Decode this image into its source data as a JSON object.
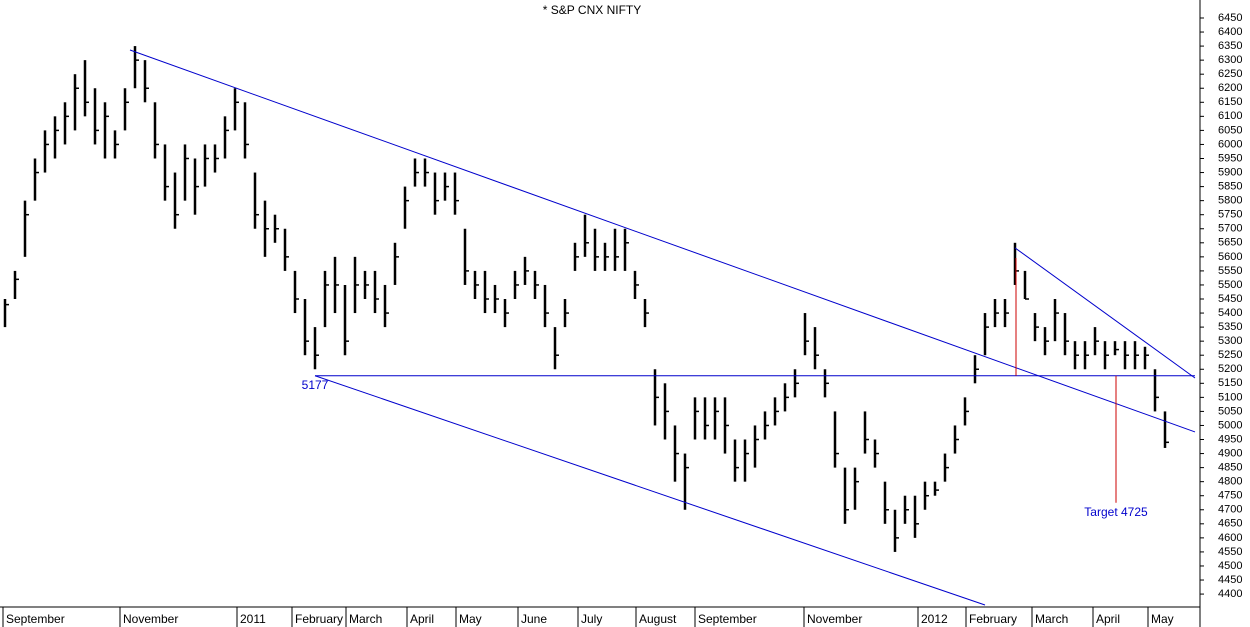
{
  "chart_data": {
    "type": "ohlc",
    "title": "* S&P CNX NIFTY",
    "bar_color": "#000000",
    "high": [
      5450,
      5550,
      5800,
      5950,
      6050,
      6100,
      6150,
      6250,
      6300,
      6200,
      6150,
      6050,
      6200,
      6350,
      6300,
      6150,
      6000,
      5900,
      6000,
      5950,
      6000,
      6000,
      6100,
      6200,
      6150,
      5900,
      5800,
      5750,
      5700,
      5550,
      5450,
      5350,
      5550,
      5600,
      5500,
      5600,
      5550,
      5550,
      5500,
      5650,
      5850,
      5950,
      5950,
      5900,
      5900,
      5900,
      5700,
      5550,
      5550,
      5500,
      5450,
      5550,
      5600,
      5550,
      5500,
      5350,
      5450,
      5650,
      5750,
      5700,
      5650,
      5700,
      5700,
      5550,
      5450,
      5200,
      5150,
      5000,
      4900,
      5100,
      5100,
      5100,
      5100,
      4950,
      4950,
      5000,
      5050,
      5100,
      5150,
      5200,
      5400,
      5350,
      5200,
      5050,
      4850,
      4850,
      5050,
      4950,
      4800,
      4700,
      4750,
      4750,
      4800,
      4800,
      4900,
      5000,
      5100,
      5250,
      5400,
      5450,
      5450,
      5650,
      5550,
      5400,
      5350,
      5450,
      5400,
      5300,
      5300,
      5350,
      5300,
      5300,
      5300,
      5300,
      5280,
      5200,
      5050
    ],
    "low": [
      5350,
      5450,
      5600,
      5800,
      5900,
      5950,
      6000,
      6050,
      6100,
      6000,
      5950,
      5950,
      6050,
      6200,
      6150,
      5950,
      5800,
      5700,
      5800,
      5750,
      5850,
      5900,
      5950,
      6050,
      5950,
      5700,
      5600,
      5650,
      5550,
      5400,
      5250,
      5200,
      5350,
      5400,
      5250,
      5400,
      5450,
      5400,
      5350,
      5500,
      5700,
      5850,
      5850,
      5750,
      5800,
      5750,
      5500,
      5450,
      5400,
      5400,
      5350,
      5450,
      5500,
      5450,
      5350,
      5200,
      5350,
      5550,
      5600,
      5550,
      5550,
      5550,
      5550,
      5450,
      5350,
      5000,
      4950,
      4800,
      4700,
      4950,
      4950,
      4950,
      4900,
      4800,
      4800,
      4850,
      4950,
      5000,
      5050,
      5100,
      5250,
      5200,
      5100,
      4850,
      4650,
      4700,
      4900,
      4850,
      4650,
      4550,
      4650,
      4600,
      4700,
      4750,
      4800,
      4900,
      5000,
      5150,
      5250,
      5350,
      5350,
      5500,
      5450,
      5300,
      5250,
      5300,
      5250,
      5200,
      5200,
      5250,
      5200,
      5250,
      5200,
      5200,
      5200,
      5050,
      4920
    ],
    "close": [
      5430,
      5520,
      5750,
      5900,
      6000,
      6050,
      6100,
      6200,
      6150,
      6050,
      6100,
      6000,
      6150,
      6300,
      6200,
      6000,
      5850,
      5750,
      5950,
      5850,
      5950,
      5950,
      6050,
      6150,
      6000,
      5750,
      5700,
      5700,
      5600,
      5450,
      5300,
      5250,
      5500,
      5500,
      5300,
      5500,
      5500,
      5450,
      5400,
      5600,
      5800,
      5900,
      5900,
      5800,
      5850,
      5800,
      5550,
      5500,
      5450,
      5450,
      5400,
      5500,
      5550,
      5500,
      5400,
      5250,
      5400,
      5600,
      5650,
      5600,
      5600,
      5600,
      5650,
      5500,
      5400,
      5100,
      5050,
      4900,
      4850,
      5050,
      5000,
      5050,
      5000,
      4850,
      4900,
      4950,
      5000,
      5050,
      5100,
      5150,
      5300,
      5250,
      5150,
      4900,
      4700,
      4800,
      4950,
      4900,
      4700,
      4600,
      4700,
      4650,
      4750,
      4770,
      4850,
      4950,
      5050,
      5200,
      5350,
      5400,
      5400,
      5550,
      5450,
      5350,
      5300,
      5400,
      5300,
      5250,
      5250,
      5300,
      5250,
      5270,
      5250,
      5250,
      5250,
      5100,
      4940
    ],
    "xlim": [
      0,
      120
    ],
    "xticks": [
      {
        "value": 0.3,
        "label": "September"
      },
      {
        "value": 12,
        "label": "November"
      },
      {
        "value": 23.7,
        "label": "2011"
      },
      {
        "value": 29.2,
        "label": "February"
      },
      {
        "value": 34.6,
        "label": "March"
      },
      {
        "value": 40.7,
        "label": "April"
      },
      {
        "value": 45.6,
        "label": "May"
      },
      {
        "value": 51.8,
        "label": "June"
      },
      {
        "value": 57.8,
        "label": "July"
      },
      {
        "value": 63.6,
        "label": "August"
      },
      {
        "value": 69.5,
        "label": "September"
      },
      {
        "value": 80.4,
        "label": "November"
      },
      {
        "value": 91.8,
        "label": "2012"
      },
      {
        "value": 96.6,
        "label": "February"
      },
      {
        "value": 103.2,
        "label": "March"
      },
      {
        "value": 109.3,
        "label": "April"
      },
      {
        "value": 114.8,
        "label": "May"
      }
    ],
    "ylim": [
      4354,
      6514
    ],
    "yticks": [
      4400,
      4450,
      4500,
      4550,
      4600,
      4650,
      4700,
      4750,
      4800,
      4850,
      4900,
      4950,
      5000,
      5050,
      5100,
      5150,
      5200,
      5250,
      5300,
      5350,
      5400,
      5450,
      5500,
      5550,
      5600,
      5650,
      5700,
      5750,
      5800,
      5850,
      5900,
      5950,
      6000,
      6050,
      6100,
      6150,
      6200,
      6250,
      6300,
      6350,
      6400,
      6450
    ],
    "lines": [
      {
        "color": "#0000cc",
        "x": [
          13,
          119.5
        ],
        "y": [
          6336,
          4977
        ]
      },
      {
        "color": "#0000cc",
        "x": [
          31.5,
          98.5
        ],
        "y": [
          5177,
          4361
        ]
      },
      {
        "color": "#0000cc",
        "x": [
          31.5,
          119.5
        ],
        "y": [
          5177,
          5177
        ]
      },
      {
        "color": "#0000cc",
        "x": [
          101.5,
          119.5
        ],
        "y": [
          5632,
          5169
        ]
      },
      {
        "color": "#cc0000",
        "x": [
          101.6,
          101.6
        ],
        "y": [
          5596,
          5177
        ]
      },
      {
        "color": "#cc0000",
        "x": [
          111.6,
          111.6
        ],
        "y": [
          5177,
          4725
        ]
      }
    ],
    "annotations": [
      {
        "text": "5177",
        "x": 31.5,
        "y": 5177,
        "color": "#0000cc"
      },
      {
        "text": "Target 4725",
        "x": 111.6,
        "y": 4725,
        "color": "#0000cc"
      }
    ]
  }
}
